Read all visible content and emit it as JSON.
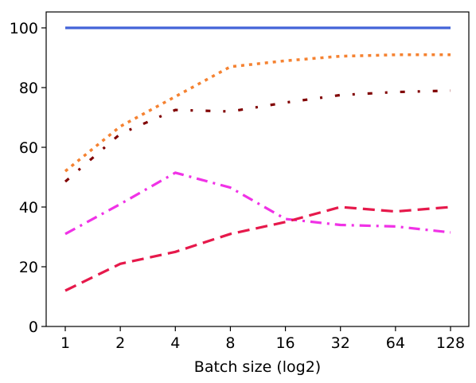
{
  "chart_data": {
    "type": "line",
    "xlabel": "Batch size (log2)",
    "ylabel": "",
    "ylim": [
      0,
      105
    ],
    "x_ticks": [
      "1",
      "2",
      "4",
      "8",
      "16",
      "32",
      "64",
      "128"
    ],
    "y_ticks": [
      0,
      20,
      40,
      60,
      80,
      100
    ],
    "grid": false,
    "legend": "none",
    "x": [
      1,
      2,
      4,
      8,
      16,
      32,
      64,
      128
    ],
    "series": [
      {
        "color": "#4363d8",
        "dash": "solid",
        "values": [
          100,
          100,
          100,
          100,
          100,
          100,
          100,
          100
        ]
      },
      {
        "color": "#f58231",
        "dash": "dotted",
        "values": [
          52,
          67,
          77,
          87,
          89,
          90.5,
          91,
          91
        ]
      },
      {
        "color": "#800000",
        "dash": "dashdotdot",
        "values": [
          48.5,
          64.5,
          72.5,
          72,
          75,
          77.5,
          78.5,
          79
        ]
      },
      {
        "color": "#f032e6",
        "dash": "dashdot",
        "values": [
          31,
          41,
          51.5,
          46.5,
          36,
          34,
          33.5,
          31.5
        ]
      },
      {
        "color": "#e6194b",
        "dash": "dashed",
        "values": [
          12,
          21,
          25,
          31,
          35,
          40,
          38.5,
          40
        ]
      }
    ]
  }
}
